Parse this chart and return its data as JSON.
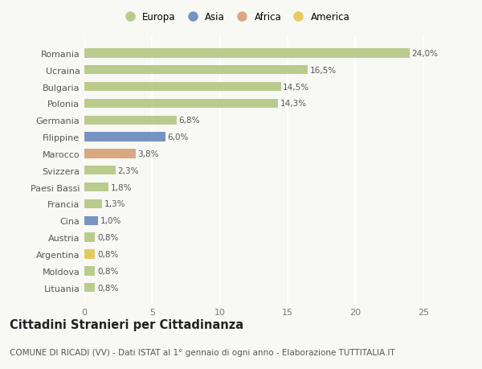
{
  "categories": [
    "Romania",
    "Ucraina",
    "Bulgaria",
    "Polonia",
    "Germania",
    "Filippine",
    "Marocco",
    "Svizzera",
    "Paesi Bassi",
    "Francia",
    "Cina",
    "Austria",
    "Argentina",
    "Moldova",
    "Lituania"
  ],
  "values": [
    24.0,
    16.5,
    14.5,
    14.3,
    6.8,
    6.0,
    3.8,
    2.3,
    1.8,
    1.3,
    1.0,
    0.8,
    0.8,
    0.8,
    0.8
  ],
  "labels": [
    "24,0%",
    "16,5%",
    "14,5%",
    "14,3%",
    "6,8%",
    "6,0%",
    "3,8%",
    "2,3%",
    "1,8%",
    "1,3%",
    "1,0%",
    "0,8%",
    "0,8%",
    "0,8%",
    "0,8%"
  ],
  "bar_colors": [
    "#adc178",
    "#adc178",
    "#adc178",
    "#adc178",
    "#adc178",
    "#5b7db8",
    "#d4956a",
    "#adc178",
    "#adc178",
    "#adc178",
    "#5b7db8",
    "#adc178",
    "#e0c040",
    "#adc178",
    "#adc178"
  ],
  "legend_labels": [
    "Europa",
    "Asia",
    "Africa",
    "America"
  ],
  "legend_colors": [
    "#adc178",
    "#5b7db8",
    "#d4956a",
    "#e0c040"
  ],
  "title": "Cittadini Stranieri per Cittadinanza",
  "subtitle": "COMUNE DI RICADI (VV) - Dati ISTAT al 1° gennaio di ogni anno - Elaborazione TUTTITALIA.IT",
  "xlim": [
    0,
    26.5
  ],
  "xticks": [
    0,
    5,
    10,
    15,
    20,
    25
  ],
  "background_color": "#f8f8f4",
  "bar_alpha": 0.82,
  "grid_color": "#ffffff",
  "title_fontsize": 10.5,
  "subtitle_fontsize": 7.5,
  "tick_fontsize": 8,
  "label_fontsize": 7.5
}
